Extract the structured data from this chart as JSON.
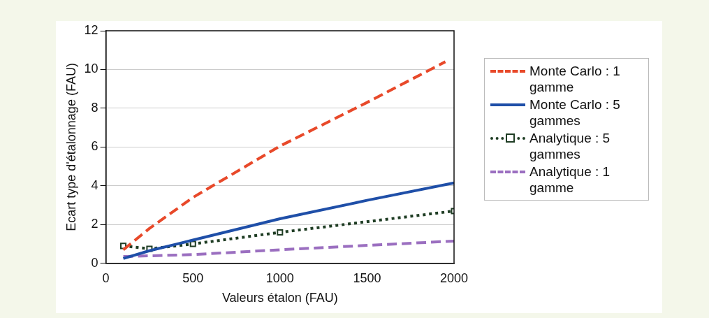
{
  "chart_data": {
    "type": "line",
    "xlabel": "Valeurs étalon (FAU)",
    "ylabel": "Ecart type d'étalonnage (FAU)",
    "xlim": [
      0,
      2000
    ],
    "xticks": [
      0,
      500,
      1000,
      1500,
      2000
    ],
    "ylim": [
      0,
      12
    ],
    "yticks": [
      0,
      2,
      4,
      6,
      8,
      10,
      12
    ],
    "grid": "y",
    "legend": "right",
    "series": [
      {
        "name": "Monte Carlo : 1 gamme",
        "color": "#e8492a",
        "line_style": "dashed",
        "marker": "none",
        "x": [
          100,
          250,
          500,
          1000,
          1500,
          1950
        ],
        "values": [
          0.7,
          1.8,
          3.4,
          6.05,
          8.3,
          10.4
        ]
      },
      {
        "name": "Monte Carlo : 5 gammes",
        "color": "#1f4fa8",
        "line_style": "solid",
        "marker": "none",
        "x": [
          100,
          250,
          500,
          1000,
          1500,
          2000
        ],
        "values": [
          0.25,
          0.65,
          1.2,
          2.3,
          3.25,
          4.15
        ]
      },
      {
        "name": "Analytique : 5 gammes",
        "color": "#1f3d24",
        "line_style": "dotted",
        "marker": "square",
        "x": [
          100,
          250,
          500,
          1000,
          2000
        ],
        "values": [
          0.9,
          0.75,
          1.0,
          1.6,
          2.7
        ]
      },
      {
        "name": "Analytique : 1 gamme",
        "color": "#9b6fc0",
        "line_style": "dashed",
        "marker": "none",
        "x": [
          100,
          500,
          1000,
          2000
        ],
        "values": [
          0.35,
          0.45,
          0.7,
          1.15
        ]
      }
    ]
  }
}
